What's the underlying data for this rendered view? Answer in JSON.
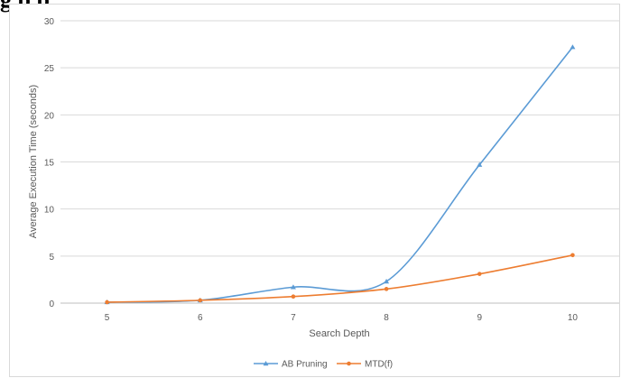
{
  "top_text": "g                                                                                     p                                  p",
  "chart_data": {
    "type": "line",
    "title": "",
    "xlabel": "Search Depth",
    "ylabel": "Average Execution Time (seconds)",
    "categories": [
      "5",
      "6",
      "7",
      "8",
      "9",
      "10"
    ],
    "ylim": [
      0,
      30
    ],
    "yticks": [
      0,
      5,
      10,
      15,
      20,
      25,
      30
    ],
    "grid": true,
    "legend_position": "bottom",
    "series": [
      {
        "name": "AB Pruning",
        "color": "#5b9bd5",
        "marker": "triangle",
        "values": [
          0.1,
          0.3,
          1.7,
          2.3,
          14.7,
          27.2
        ]
      },
      {
        "name": "MTD(f)",
        "color": "#ed7d31",
        "marker": "circle",
        "values": [
          0.1,
          0.3,
          0.7,
          1.5,
          3.1,
          5.1
        ]
      }
    ]
  }
}
